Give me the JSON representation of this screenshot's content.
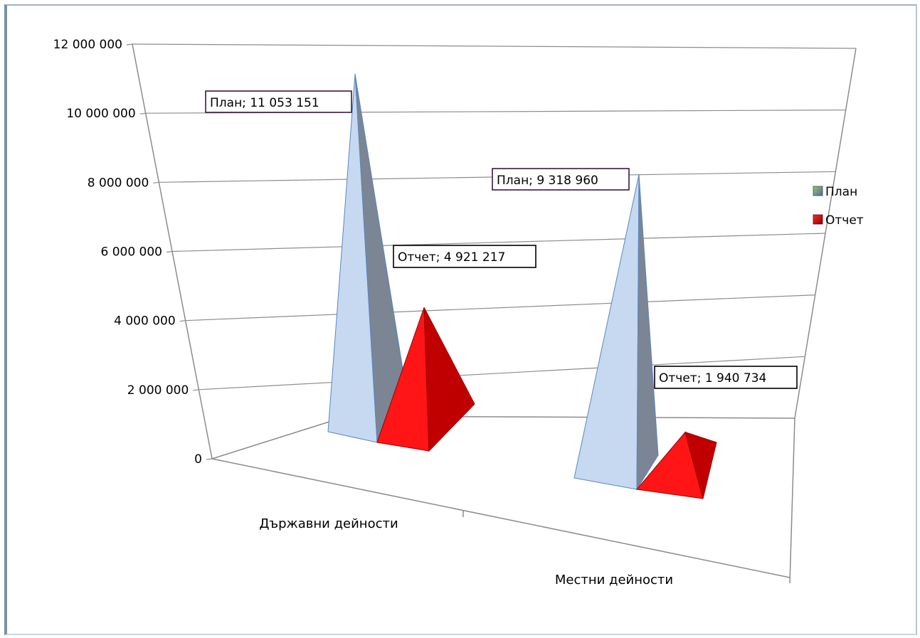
{
  "chart_data": {
    "type": "bar",
    "style": "3d-pyramid",
    "categories": [
      "Държавни дейности",
      "Местни дейности"
    ],
    "series": [
      {
        "name": "План",
        "values": [
          11053151,
          9318960
        ],
        "color": "#c6d9f1"
      },
      {
        "name": "Отчет",
        "values": [
          4921217,
          1940734
        ],
        "color": "#ff0000"
      }
    ],
    "y_ticks": [
      "0",
      "2 000 000",
      "4 000 000",
      "6 000 000",
      "8 000 000",
      "10 000 000",
      "12 000 000"
    ],
    "ylim": [
      0,
      12000000
    ],
    "data_labels": [
      [
        "План; 11 053 151",
        "План; 9 318 960"
      ],
      [
        "Отчет; 4 921 217",
        "Отчет; 1 940 734"
      ]
    ],
    "legend": {
      "position": "right"
    },
    "grid": true
  }
}
